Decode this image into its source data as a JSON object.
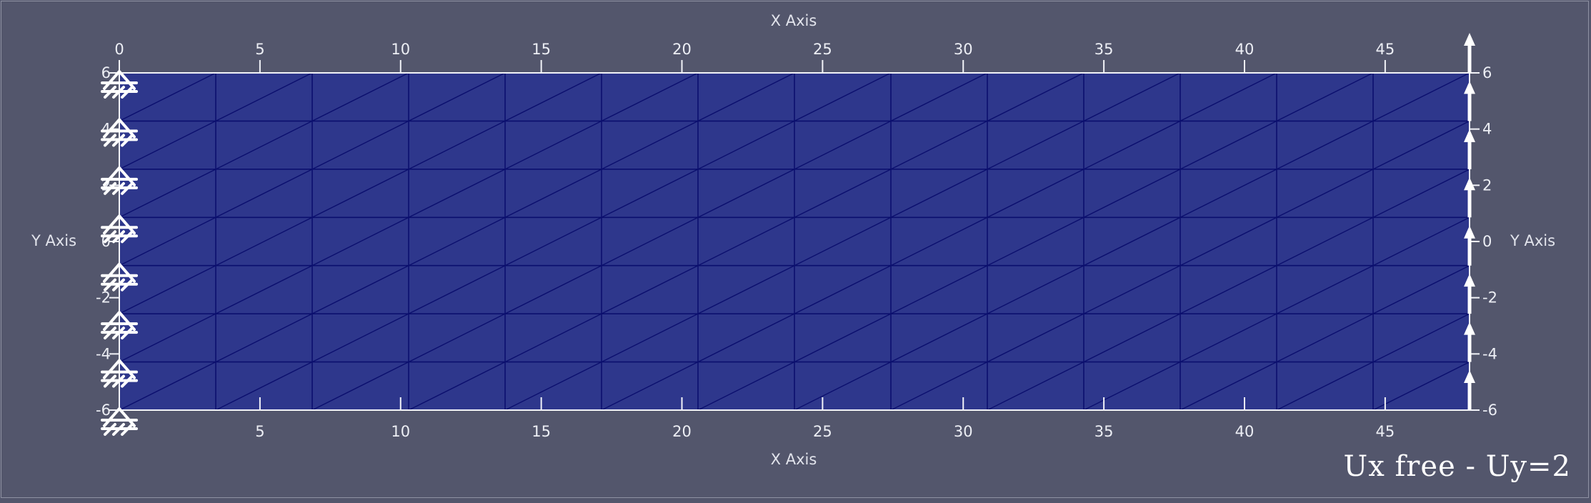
{
  "axes": {
    "x_title_top": "X Axis",
    "x_title_bottom": "X Axis",
    "y_title_left": "Y Axis",
    "y_title_right": "Y Axis",
    "x_ticks_top": [
      "0",
      "5",
      "10",
      "15",
      "20",
      "25",
      "30",
      "35",
      "40",
      "45"
    ],
    "x_ticks_bottom": [
      "5",
      "10",
      "15",
      "20",
      "25",
      "30",
      "35",
      "40",
      "45"
    ],
    "y_ticks_left": [
      "6",
      "4",
      "2",
      "0",
      "-2",
      "-4",
      "-6"
    ],
    "y_ticks_right": [
      "6",
      "4",
      "2",
      "0",
      "-2",
      "-4",
      "-6"
    ]
  },
  "mesh": {
    "x_range": [
      0,
      48
    ],
    "y_range": [
      -6,
      6
    ],
    "x_divisions": 14,
    "y_divisions": 7,
    "fill_color": "#2e378c",
    "line_color": "#0b0f6e"
  },
  "boundary_conditions": {
    "left_edge": "fixed-support",
    "right_edge": "upward-displacement",
    "symbol_color": "#ffffff"
  },
  "caption": "Ux free - Uy=2"
}
